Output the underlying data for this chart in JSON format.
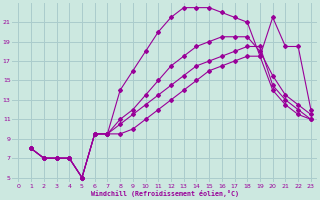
{
  "bg_color": "#cce8e0",
  "line_color": "#990099",
  "grid_color": "#aacccc",
  "xlabel": "Windchill (Refroidissement éolien,°C)",
  "xlim": [
    -0.5,
    23.5
  ],
  "ylim": [
    4.5,
    23.0
  ],
  "xticks": [
    0,
    1,
    2,
    3,
    4,
    5,
    6,
    7,
    8,
    9,
    10,
    11,
    12,
    13,
    14,
    15,
    16,
    17,
    18,
    19,
    20,
    21,
    22,
    23
  ],
  "yticks": [
    5,
    7,
    9,
    11,
    13,
    15,
    17,
    19,
    21
  ],
  "lines": [
    {
      "x": [
        1,
        2,
        3,
        4,
        5,
        6,
        7,
        8,
        9,
        10,
        11,
        12,
        13,
        14,
        15,
        16,
        17,
        18,
        19,
        20,
        21,
        22,
        23
      ],
      "y": [
        8,
        7,
        7,
        7,
        5,
        9.5,
        9.5,
        14,
        16,
        18,
        20,
        21.5,
        22.5,
        22.5,
        22.5,
        22.0,
        21.5,
        21.0,
        17.5,
        21.5,
        18.5,
        18.5,
        12.0
      ]
    },
    {
      "x": [
        1,
        2,
        3,
        4,
        5,
        6,
        7,
        8,
        9,
        10,
        11,
        12,
        13,
        14,
        15,
        16,
        17,
        18,
        19,
        20,
        21,
        22,
        23
      ],
      "y": [
        8,
        7,
        7,
        7,
        5,
        9.5,
        9.5,
        11,
        12,
        13.5,
        15,
        16.5,
        17.5,
        18.5,
        19.0,
        19.5,
        19.5,
        19.5,
        18.0,
        15.5,
        13.5,
        12.5,
        11.5
      ]
    },
    {
      "x": [
        1,
        2,
        3,
        4,
        5,
        6,
        7,
        8,
        9,
        10,
        11,
        12,
        13,
        14,
        15,
        16,
        17,
        18,
        19,
        20,
        21,
        22,
        23
      ],
      "y": [
        8,
        7,
        7,
        7,
        5,
        9.5,
        9.5,
        10.5,
        11.5,
        12.5,
        13.5,
        14.5,
        15.5,
        16.5,
        17.0,
        17.5,
        18.0,
        18.5,
        18.5,
        14.5,
        13.0,
        12.0,
        11.0
      ]
    },
    {
      "x": [
        1,
        2,
        3,
        4,
        5,
        6,
        7,
        8,
        9,
        10,
        11,
        12,
        13,
        14,
        15,
        16,
        17,
        18,
        19,
        20,
        21,
        22,
        23
      ],
      "y": [
        8,
        7,
        7,
        7,
        5,
        9.5,
        9.5,
        9.5,
        10.0,
        11.0,
        12.0,
        13.0,
        14.0,
        15.0,
        16.0,
        16.5,
        17.0,
        17.5,
        17.5,
        14.0,
        12.5,
        11.5,
        11.0
      ]
    }
  ]
}
